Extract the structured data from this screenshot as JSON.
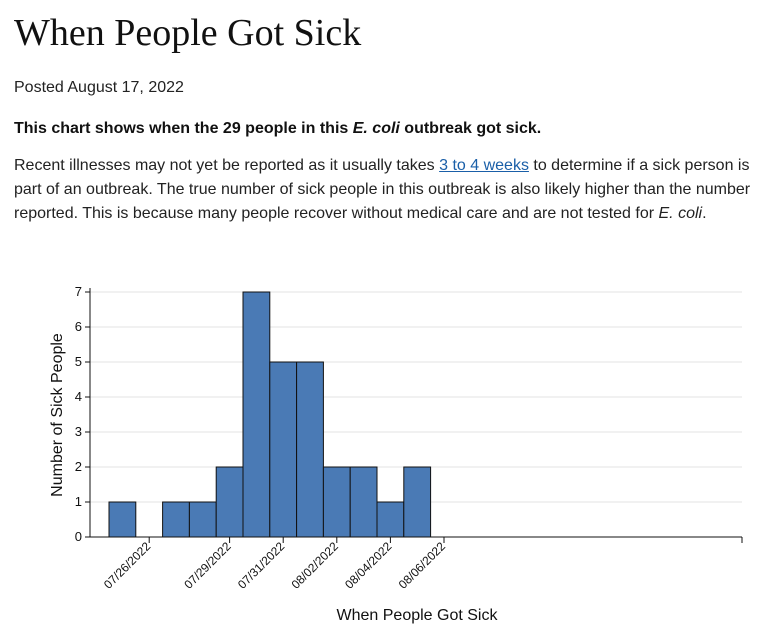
{
  "page": {
    "title": "When People Got Sick",
    "posted": "Posted August 17, 2022",
    "intro": {
      "before": "This chart shows when the 29 people in this ",
      "italic": "E. coli",
      "after": " outbreak got sick."
    },
    "body": {
      "before_link": "Recent illnesses may not yet be reported as it usually takes ",
      "link_text": "3 to 4 weeks",
      "after_link": " to determine if a sick person is part of an outbreak. The true number of sick people in this outbreak is also likely higher than the number reported. This is because many people recover without medical care and are not tested for ",
      "italic": "E. coli",
      "end": "."
    }
  },
  "chart_data": {
    "type": "bar",
    "title": "",
    "xlabel": "When People Got Sick",
    "ylabel": "Number of Sick People",
    "ylim": [
      0,
      7
    ],
    "yticks": [
      0,
      1,
      2,
      3,
      4,
      5,
      6,
      7
    ],
    "grid": true,
    "bar_color": "#4a7ab5",
    "categories": [
      "07/25/2022",
      "07/26/2022",
      "07/27/2022",
      "07/28/2022",
      "07/29/2022",
      "07/30/2022",
      "07/31/2022",
      "08/01/2022",
      "08/02/2022",
      "08/03/2022",
      "08/04/2022",
      "08/05/2022",
      "08/06/2022"
    ],
    "values": [
      1,
      0,
      1,
      1,
      2,
      7,
      5,
      5,
      2,
      2,
      1,
      2,
      0
    ],
    "xticks": [
      "07/26/2022",
      "07/29/2022",
      "07/31/2022",
      "08/02/2022",
      "08/04/2022",
      "08/06/2022"
    ]
  }
}
